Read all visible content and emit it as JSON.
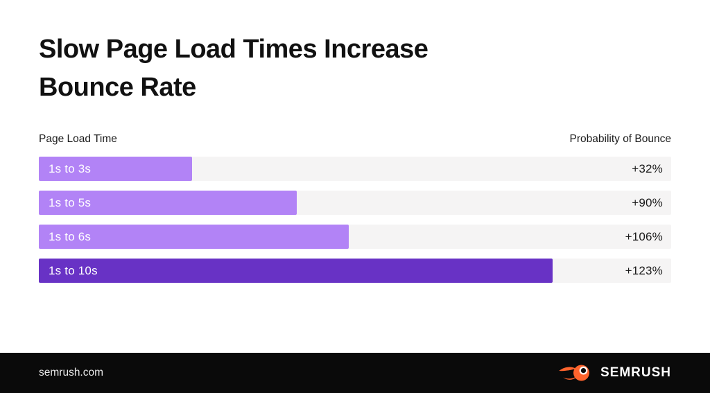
{
  "title": {
    "line1": "Slow Page Load Times Increase",
    "line2": "Bounce Rate"
  },
  "columns": {
    "left": "Page Load Time",
    "right": "Probability of Bounce"
  },
  "footer": {
    "site": "semrush.com",
    "brand": "SEMRUSH"
  },
  "colors": {
    "bar_light": "#B283F6",
    "bar_dark": "#6832C5",
    "track": "#F5F4F4",
    "footer_bg": "#0A0A0A",
    "logo_orange": "#FF642D"
  },
  "chart_data": {
    "type": "bar",
    "orientation": "horizontal",
    "title": "Slow Page Load Times Increase Bounce Rate",
    "xlabel": "Probability of Bounce",
    "ylabel": "Page Load Time",
    "categories": [
      "1s to 3s",
      "1s to 5s",
      "1s to 6s",
      "1s to 10s"
    ],
    "values": [
      32,
      90,
      106,
      123
    ],
    "value_labels": [
      "+32%",
      "+90%",
      "+106%",
      "+123%"
    ],
    "bar_width_pct": [
      24.2,
      40.8,
      49.0,
      81.3
    ],
    "bar_colors": [
      "#B283F6",
      "#B283F6",
      "#B283F6",
      "#6832C5"
    ],
    "legend": false,
    "grid": false
  }
}
